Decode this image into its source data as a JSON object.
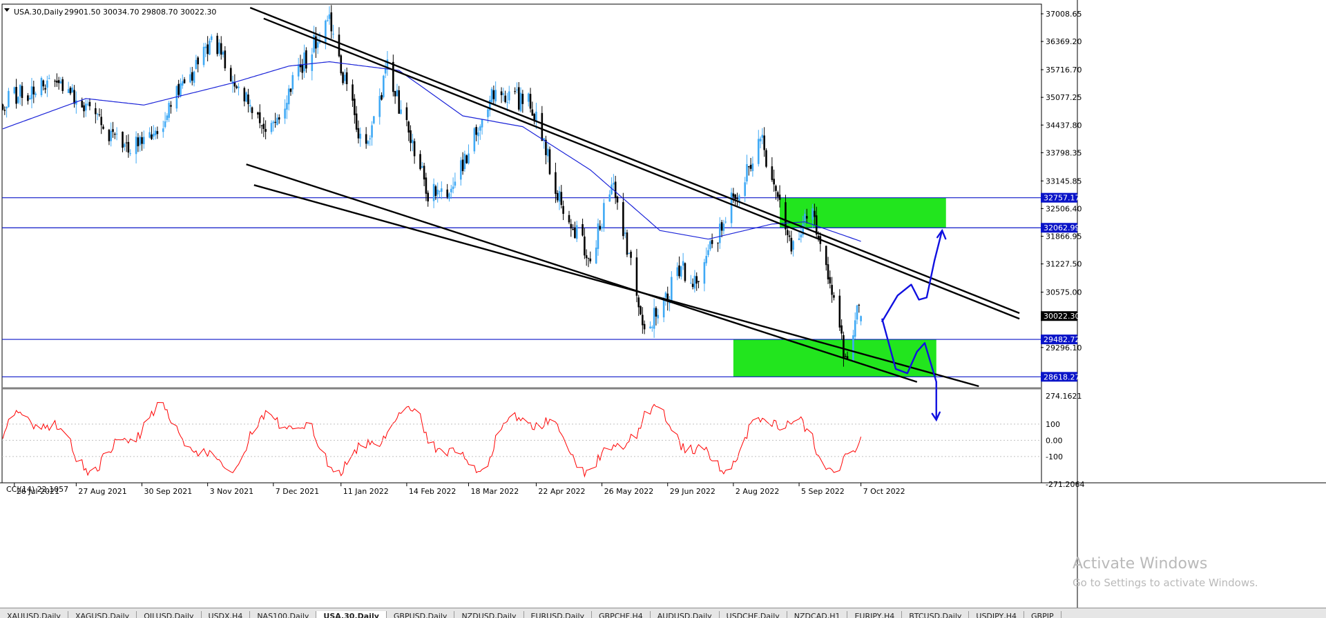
{
  "header": {
    "symbol_label": "USA.30,Daily",
    "ohlc_label": "29901.50 30034.70 29808.70 30022.30"
  },
  "price_axis": {
    "labels": [
      "37008.65",
      "36369.20",
      "35716.70",
      "35077.25",
      "34437.80",
      "33798.35",
      "33145.85",
      "32506.40",
      "31866.95",
      "31227.50",
      "30575.00",
      "29296.10"
    ],
    "tagged_levels": [
      {
        "label": "32757.17",
        "kind": "horizontal-line"
      },
      {
        "label": "32062.99",
        "kind": "horizontal-line"
      },
      {
        "label": "30022.30",
        "kind": "current-price"
      },
      {
        "label": "29482.72",
        "kind": "horizontal-line"
      },
      {
        "label": "28618.27",
        "kind": "horizontal-line"
      }
    ]
  },
  "cci_panel": {
    "label": "CCI(14) 22.1057",
    "axis_labels": [
      "274.1621",
      "100",
      "0.00",
      "-100",
      "-271.2064"
    ]
  },
  "date_axis": {
    "labels": [
      "26 Jul 2021",
      "27 Aug 2021",
      "30 Sep 2021",
      "3 Nov 2021",
      "7 Dec 2021",
      "11 Jan 2022",
      "14 Feb 2022",
      "18 Mar 2022",
      "22 Apr 2022",
      "26 May 2022",
      "29 Jun 2022",
      "2 Aug 2022",
      "5 Sep 2022",
      "7 Oct 2022"
    ]
  },
  "tabs": [
    {
      "label": "XAUUSD,Daily",
      "active": false
    },
    {
      "label": "XAGUSD,Daily",
      "active": false
    },
    {
      "label": "OILUSD,Daily",
      "active": false
    },
    {
      "label": "USDX,H4",
      "active": false
    },
    {
      "label": "NAS100,Daily",
      "active": false
    },
    {
      "label": "USA.30,Daily",
      "active": true
    },
    {
      "label": "GBPUSD,Daily",
      "active": false
    },
    {
      "label": "NZDUSD,Daily",
      "active": false
    },
    {
      "label": "EURUSD,Daily",
      "active": false
    },
    {
      "label": "GBPCHF,H4",
      "active": false
    },
    {
      "label": "AUDUSD,Daily",
      "active": false
    },
    {
      "label": "USDCHF,Daily",
      "active": false
    },
    {
      "label": "NZDCAD,H1",
      "active": false
    },
    {
      "label": "EURJPY,H4",
      "active": false
    },
    {
      "label": "BTCUSD,Daily",
      "active": false
    },
    {
      "label": "USDJPY,H4",
      "active": false
    },
    {
      "label": "GBPJP",
      "active": false
    }
  ],
  "watermark": {
    "line1": "Activate Windows",
    "line2": "Go to Settings to activate Windows."
  },
  "colors": {
    "bull_candle": "#3fa9f5",
    "bear_candle": "#000000",
    "moving_average": "#1a23d8",
    "horizontal_levels": "#0a14c8",
    "trend_channel": "#000000",
    "zones": "#22e51e",
    "cci_line": "#ff0000",
    "drawing": "#1010e0"
  },
  "chart_data": {
    "type": "candlestick",
    "symbol": "USA.30",
    "timeframe": "Daily",
    "last_bar": {
      "open": 29901.5,
      "high": 30034.7,
      "low": 29808.7,
      "close": 30022.3
    },
    "price_range": [
      28400,
      37200
    ],
    "x_range": [
      "2021-07-20",
      "2022-10-10"
    ],
    "anchors": [
      {
        "d": "2021-07-20",
        "p": 34950
      },
      {
        "d": "2021-08-06",
        "p": 35300
      },
      {
        "d": "2021-08-24",
        "p": 35250
      },
      {
        "d": "2021-09-20",
        "p": 33900
      },
      {
        "d": "2021-10-04",
        "p": 34050
      },
      {
        "d": "2021-11-05",
        "p": 36450
      },
      {
        "d": "2021-11-30",
        "p": 34400
      },
      {
        "d": "2021-12-03",
        "p": 34200
      },
      {
        "d": "2022-01-04",
        "p": 36900
      },
      {
        "d": "2022-01-24",
        "p": 33750
      },
      {
        "d": "2022-02-04",
        "p": 35800
      },
      {
        "d": "2022-02-24",
        "p": 32950
      },
      {
        "d": "2022-03-08",
        "p": 32700
      },
      {
        "d": "2022-03-30",
        "p": 35200
      },
      {
        "d": "2022-04-20",
        "p": 34900
      },
      {
        "d": "2022-05-02",
        "p": 33000
      },
      {
        "d": "2022-05-20",
        "p": 31300
      },
      {
        "d": "2022-06-01",
        "p": 33150
      },
      {
        "d": "2022-06-17",
        "p": 29700
      },
      {
        "d": "2022-07-07",
        "p": 31100
      },
      {
        "d": "2022-07-14",
        "p": 30800
      },
      {
        "d": "2022-08-16",
        "p": 34150
      },
      {
        "d": "2022-08-31",
        "p": 31600
      },
      {
        "d": "2022-09-12",
        "p": 32400
      },
      {
        "d": "2022-09-30",
        "p": 28800
      },
      {
        "d": "2022-10-05",
        "p": 30300
      },
      {
        "d": "2022-10-07",
        "p": 30022
      }
    ],
    "ma_anchors": [
      {
        "d": "2021-07-20",
        "p": 34350
      },
      {
        "d": "2021-09-01",
        "p": 35050
      },
      {
        "d": "2021-10-01",
        "p": 34900
      },
      {
        "d": "2021-11-15",
        "p": 35400
      },
      {
        "d": "2021-12-15",
        "p": 35800
      },
      {
        "d": "2022-01-05",
        "p": 35900
      },
      {
        "d": "2022-02-10",
        "p": 35700
      },
      {
        "d": "2022-03-15",
        "p": 34650
      },
      {
        "d": "2022-04-15",
        "p": 34400
      },
      {
        "d": "2022-05-20",
        "p": 33400
      },
      {
        "d": "2022-06-25",
        "p": 32000
      },
      {
        "d": "2022-07-20",
        "p": 31800
      },
      {
        "d": "2022-08-22",
        "p": 32150
      },
      {
        "d": "2022-09-08",
        "p": 32200
      },
      {
        "d": "2022-10-07",
        "p": 31750
      }
    ],
    "horizontal_levels": [
      32757.17,
      32062.99,
      29482.72,
      28618.27
    ],
    "channels": [
      {
        "from": {
          "d": "2021-12-02",
          "p": 36900
        },
        "to": {
          "d": "2022-12-28",
          "p": 29960
        }
      },
      {
        "from": {
          "d": "2021-11-25",
          "p": 37150
        },
        "to": {
          "d": "2022-12-28",
          "p": 30090
        }
      },
      {
        "from": {
          "d": "2021-11-23",
          "p": 33530
        },
        "to": {
          "d": "2022-11-05",
          "p": 28500
        }
      },
      {
        "from": {
          "d": "2021-11-27",
          "p": 33050
        },
        "to": {
          "d": "2022-12-07",
          "p": 28400
        }
      }
    ],
    "zones": [
      {
        "from": "2022-08-26",
        "to": "2022-11-20",
        "top": 32757.17,
        "bottom": 32062.99
      },
      {
        "from": "2022-08-02",
        "to": "2022-11-15",
        "top": 29482.72,
        "bottom": 28618.27
      }
    ],
    "drawing_up": [
      {
        "d": "2022-10-18",
        "p": 29900
      },
      {
        "d": "2022-10-26",
        "p": 30500
      },
      {
        "d": "2022-11-02",
        "p": 30750
      },
      {
        "d": "2022-11-06",
        "p": 30400
      },
      {
        "d": "2022-11-10",
        "p": 30450
      },
      {
        "d": "2022-11-14",
        "p": 31300
      },
      {
        "d": "2022-11-18",
        "p": 32000
      }
    ],
    "drawing_down": [
      {
        "d": "2022-10-18",
        "p": 29950
      },
      {
        "d": "2022-10-25",
        "p": 28800
      },
      {
        "d": "2022-10-31",
        "p": 28700
      },
      {
        "d": "2022-11-05",
        "p": 29200
      },
      {
        "d": "2022-11-09",
        "p": 29400
      },
      {
        "d": "2022-11-15",
        "p": 28500
      }
    ],
    "cci": {
      "range": [
        -271.2064,
        274.1621
      ],
      "last": 22.1057,
      "levels": [
        100,
        0,
        -100
      ]
    }
  }
}
